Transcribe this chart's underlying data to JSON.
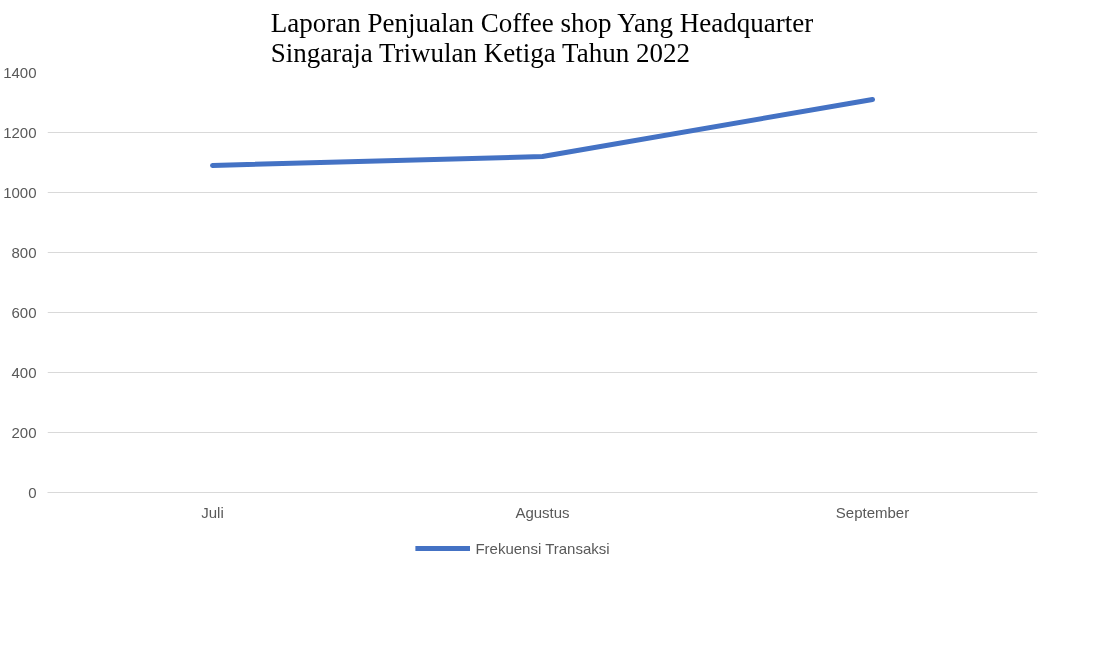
{
  "chart_data": {
    "type": "line",
    "title": "Laporan Penjualan Coffee shop Yang Headquarter\nSingaraja Triwulan Ketiga Tahun 2022",
    "categories": [
      "Juli",
      "Agustus",
      "September"
    ],
    "series": [
      {
        "name": "Frekuensi Transaksi",
        "color": "#4472c4",
        "values": [
          1090,
          1120,
          1310
        ]
      }
    ],
    "ylim": [
      0,
      1400
    ],
    "yticks": [
      0,
      200,
      400,
      600,
      800,
      1000,
      1200,
      1400
    ],
    "grid": "y",
    "legend": "bottom",
    "marker": "none",
    "line_style": "solid"
  }
}
